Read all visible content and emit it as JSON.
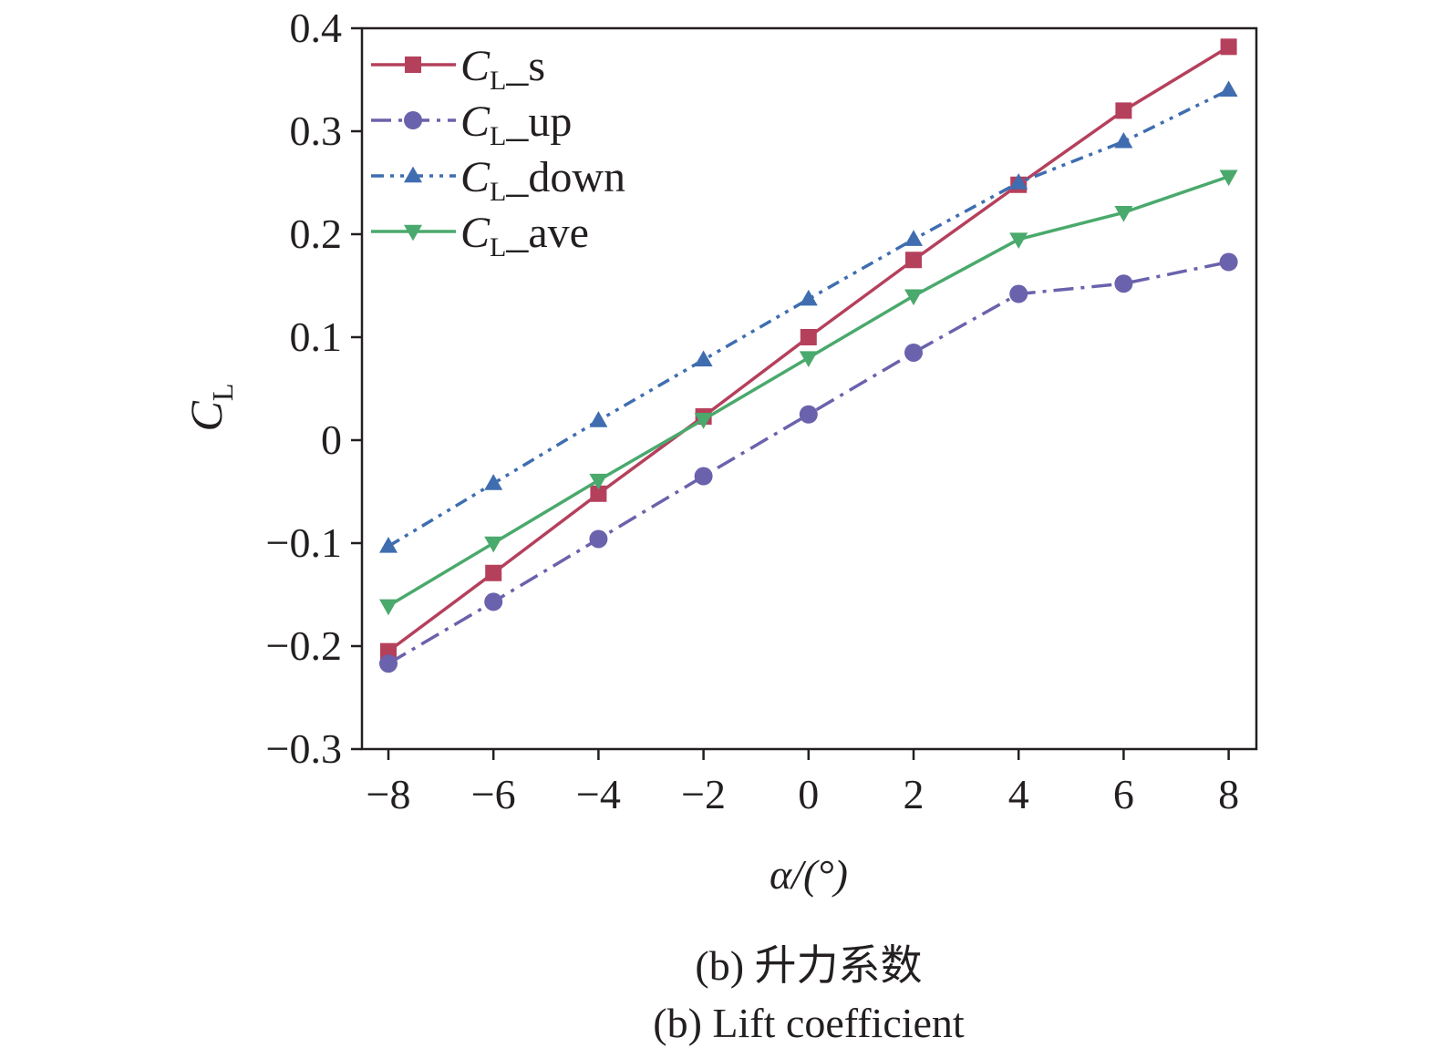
{
  "chart_data": {
    "type": "line",
    "x": [
      -8,
      -6,
      -4,
      -2,
      0,
      2,
      4,
      6,
      8
    ],
    "xlabel": "α/(°)",
    "ylabel_main": "C",
    "ylabel_sub": "L",
    "xlim": [
      -8.5,
      8.5
    ],
    "ylim": [
      -0.3,
      0.4
    ],
    "xticks": [
      "−8",
      "−6",
      "−4",
      "−2",
      "0",
      "2",
      "4",
      "6",
      "8"
    ],
    "yticks": [
      "0.4",
      "0.3",
      "0.2",
      "0.1",
      "0",
      "−0.1",
      "−0.2",
      "−0.3"
    ],
    "legend_position": "top-left",
    "grid": false,
    "series": [
      {
        "name": "C_L_s",
        "legend_main": "C",
        "legend_sub": "L",
        "legend_suffix": "_s",
        "color": "#b5405c",
        "marker": "square",
        "dash": "solid",
        "values": [
          -0.205,
          -0.129,
          -0.052,
          0.023,
          0.1,
          0.175,
          0.248,
          0.32,
          0.382
        ]
      },
      {
        "name": "C_L_up",
        "legend_main": "C",
        "legend_sub": "L",
        "legend_suffix": "_up",
        "color": "#6a62ac",
        "marker": "circle",
        "dash": "dashdot",
        "values": [
          -0.217,
          -0.157,
          -0.096,
          -0.035,
          0.025,
          0.085,
          0.142,
          0.152,
          0.173
        ]
      },
      {
        "name": "C_L_down",
        "legend_main": "C",
        "legend_sub": "L",
        "legend_suffix": "_down",
        "color": "#3f6db0",
        "marker": "triangle-up",
        "dash": "dashdotdot",
        "values": [
          -0.103,
          -0.042,
          0.019,
          0.078,
          0.137,
          0.195,
          0.25,
          0.29,
          0.34
        ]
      },
      {
        "name": "C_L_ave",
        "legend_main": "C",
        "legend_sub": "L",
        "legend_suffix": "_ave",
        "color": "#4aa96c",
        "marker": "triangle-down",
        "dash": "solid",
        "values": [
          -0.161,
          -0.1,
          -0.039,
          0.02,
          0.08,
          0.14,
          0.195,
          0.221,
          0.256
        ]
      }
    ]
  },
  "caption": {
    "line1": "(b) 升力系数",
    "line2": "(b) Lift coefficient"
  }
}
